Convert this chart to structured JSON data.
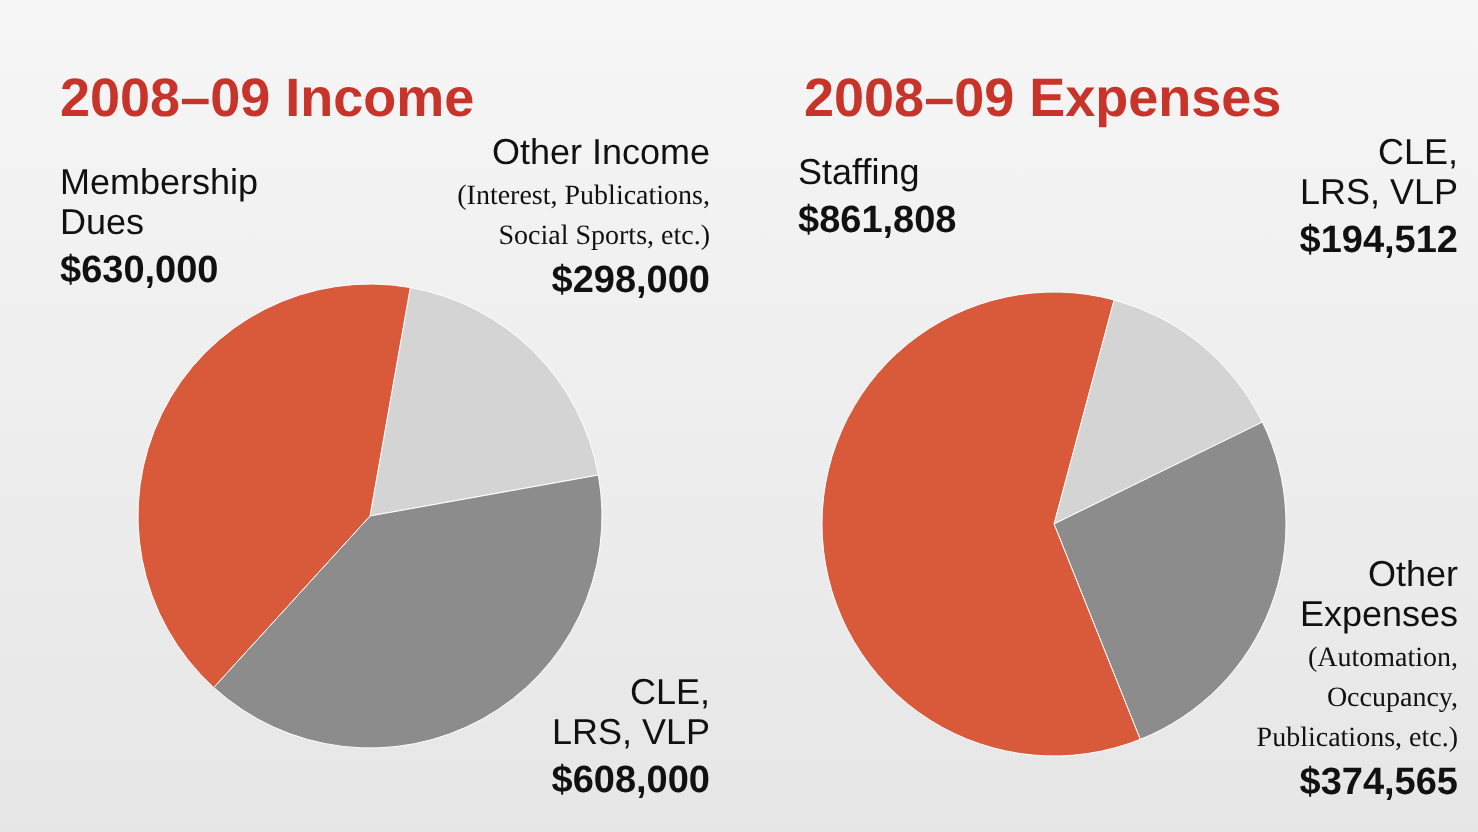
{
  "chart_data": [
    {
      "type": "pie",
      "title": "2008–09 Income",
      "categories": [
        "Other Income",
        "CLE, LRS, VLP",
        "Membership Dues"
      ],
      "values": [
        298000,
        608000,
        630000
      ],
      "colors": [
        "#d4d4d4",
        "#8c8c8c",
        "#d95a3b"
      ],
      "value_labels": [
        "$298,000",
        "$608,000",
        "$630,000"
      ],
      "annotations": [
        "(Interest, Publications, Social Sports, etc.)"
      ]
    },
    {
      "type": "pie",
      "title": "2008–09 Expenses",
      "categories": [
        "CLE, LRS, VLP",
        "Other Expenses",
        "Staffing"
      ],
      "values": [
        194512,
        374565,
        861808
      ],
      "colors": [
        "#d4d4d4",
        "#8c8c8c",
        "#d95a3b"
      ],
      "value_labels": [
        "$194,512",
        "$374,565",
        "$861,808"
      ],
      "annotations": [
        "(Automation, Occupancy, Publications, etc.)"
      ]
    }
  ]
}
